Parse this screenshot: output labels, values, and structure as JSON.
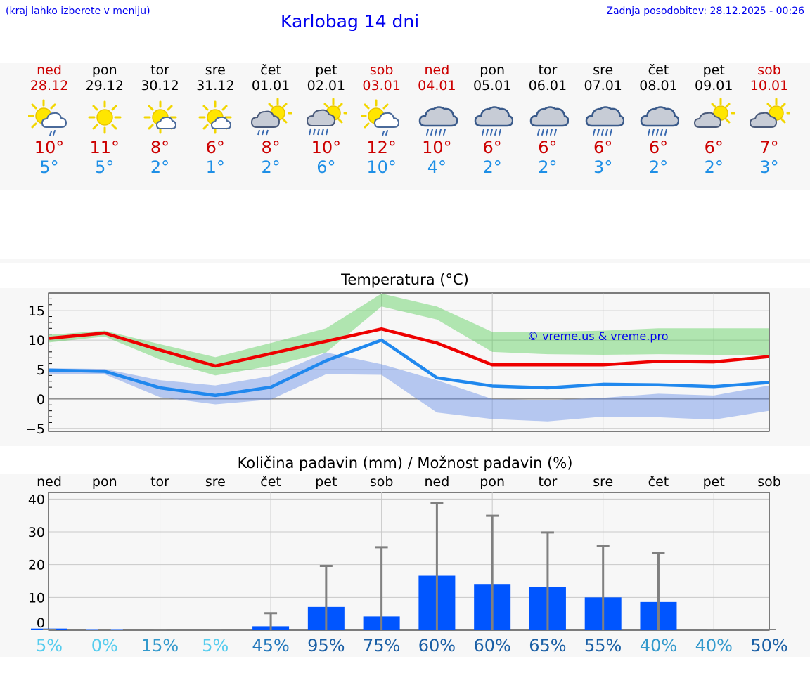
{
  "header": {
    "menu_hint": "(kraj lahko izberete v meniju)",
    "title": "Karlobag 14 dni",
    "updated": "Zadnja posodobitev: 28.12.2025 - 00:26"
  },
  "colors": {
    "link": "#0000ee",
    "weekend": "#cc0000",
    "max": "#cc0000",
    "min": "#1e8fe6",
    "bar": "#0055ff",
    "err": "#808080"
  },
  "days": [
    {
      "name": "ned",
      "date": "28.12",
      "weekend": true,
      "icon": "sun-cloud-drizzle-icon",
      "tmax": "10°",
      "tmin": "5°"
    },
    {
      "name": "pon",
      "date": "29.12",
      "weekend": false,
      "icon": "sun-icon",
      "tmax": "11°",
      "tmin": "5°"
    },
    {
      "name": "tor",
      "date": "30.12",
      "weekend": false,
      "icon": "sun-small-cloud-icon",
      "tmax": "8°",
      "tmin": "2°"
    },
    {
      "name": "sre",
      "date": "31.12",
      "weekend": false,
      "icon": "sun-small-cloud-icon",
      "tmax": "6°",
      "tmin": "1°"
    },
    {
      "name": "čet",
      "date": "01.01",
      "weekend": false,
      "icon": "cloud-sun-rain-icon",
      "tmax": "8°",
      "tmin": "2°"
    },
    {
      "name": "pet",
      "date": "02.01",
      "weekend": false,
      "icon": "cloud-sun-heavy-rain-icon",
      "tmax": "10°",
      "tmin": "6°"
    },
    {
      "name": "sob",
      "date": "03.01",
      "weekend": true,
      "icon": "sun-cloud-drizzle-icon",
      "tmax": "12°",
      "tmin": "10°"
    },
    {
      "name": "ned",
      "date": "04.01",
      "weekend": true,
      "icon": "cloud-rain-icon",
      "tmax": "10°",
      "tmin": "4°"
    },
    {
      "name": "pon",
      "date": "05.01",
      "weekend": false,
      "icon": "cloud-rain-icon",
      "tmax": "6°",
      "tmin": "2°"
    },
    {
      "name": "tor",
      "date": "06.01",
      "weekend": false,
      "icon": "cloud-rain-icon",
      "tmax": "6°",
      "tmin": "2°"
    },
    {
      "name": "sre",
      "date": "07.01",
      "weekend": false,
      "icon": "cloud-rain-icon",
      "tmax": "6°",
      "tmin": "3°"
    },
    {
      "name": "čet",
      "date": "08.01",
      "weekend": false,
      "icon": "cloud-rain-icon",
      "tmax": "6°",
      "tmin": "2°"
    },
    {
      "name": "pet",
      "date": "09.01",
      "weekend": false,
      "icon": "sun-behind-cloud-icon",
      "tmax": "6°",
      "tmin": "2°"
    },
    {
      "name": "sob",
      "date": "10.01",
      "weekend": true,
      "icon": "sun-behind-cloud-icon",
      "tmax": "7°",
      "tmin": "3°"
    }
  ],
  "chart_data": [
    {
      "type": "line",
      "title": "Temperatura (°C)",
      "watermark": "© vreme.us & vreme.pro",
      "ylim": [
        -5.5,
        18
      ],
      "yticks": [
        -5,
        0,
        5,
        10,
        15
      ],
      "ytick_labels": [
        "−5",
        "0",
        "5",
        "10",
        "15"
      ],
      "grid": true,
      "series": [
        {
          "name": "max",
          "values": [
            10.3,
            11.2,
            8.3,
            5.6,
            7.7,
            9.8,
            11.9,
            9.5,
            5.8,
            5.8,
            5.8,
            6.4,
            6.3,
            7.2
          ]
        },
        {
          "name": "min",
          "values": [
            4.9,
            4.7,
            1.9,
            0.6,
            2.0,
            6.5,
            10.0,
            3.6,
            2.2,
            1.9,
            2.5,
            2.4,
            2.1,
            2.8
          ]
        }
      ],
      "bands": [
        {
          "name": "max-range",
          "lo": [
            9.6,
            10.6,
            6.7,
            4.0,
            5.6,
            7.9,
            15.7,
            13.5,
            8.0,
            7.6,
            7.5,
            7.6,
            7.5,
            7.5
          ],
          "hi": [
            10.9,
            11.6,
            9.3,
            7.1,
            9.5,
            12.0,
            17.9,
            15.7,
            11.4,
            11.4,
            11.6,
            12.0,
            12.0,
            12.0
          ]
        },
        {
          "name": "min-range",
          "lo": [
            4.3,
            4.2,
            0.3,
            -0.9,
            -0.1,
            4.2,
            4.1,
            -2.3,
            -3.4,
            -3.8,
            -3.0,
            -3.1,
            -3.5,
            -2.0
          ],
          "hi": [
            5.2,
            5.1,
            3.2,
            2.3,
            3.9,
            7.9,
            5.9,
            3.2,
            0.0,
            -0.2,
            0.2,
            0.9,
            0.6,
            2.3
          ]
        }
      ]
    },
    {
      "type": "bar",
      "title": "Količina padavin (mm) / Možnost padavin (%)",
      "categories": [
        "ned",
        "pon",
        "tor",
        "sre",
        "čet",
        "pet",
        "sob",
        "ned",
        "pon",
        "tor",
        "sre",
        "čet",
        "pet",
        "sob"
      ],
      "ylim": [
        0,
        42
      ],
      "yticks": [
        0,
        10,
        20,
        30,
        40
      ],
      "values": [
        0.5,
        0.1,
        0,
        0,
        1.2,
        7.1,
        4.2,
        16.6,
        14.1,
        13.2,
        10.0,
        8.6,
        0,
        0
      ],
      "error_max": [
        0.5,
        0.1,
        0,
        0,
        5.2,
        19.6,
        25.3,
        38.9,
        34.9,
        29.8,
        25.6,
        23.5,
        0,
        0
      ],
      "chance": [
        "5%",
        "0%",
        "15%",
        "5%",
        "45%",
        "95%",
        "75%",
        "60%",
        "60%",
        "65%",
        "55%",
        "40%",
        "40%",
        "50%"
      ],
      "chance_colors": [
        "#55ccee",
        "#55ccee",
        "#3399cc",
        "#55ccee",
        "#2277bb",
        "#1a5fa5",
        "#1a5fa5",
        "#1a5fa5",
        "#1a5fa5",
        "#1a5fa5",
        "#1a5fa5",
        "#3399cc",
        "#3399cc",
        "#1a5fa5"
      ]
    }
  ]
}
